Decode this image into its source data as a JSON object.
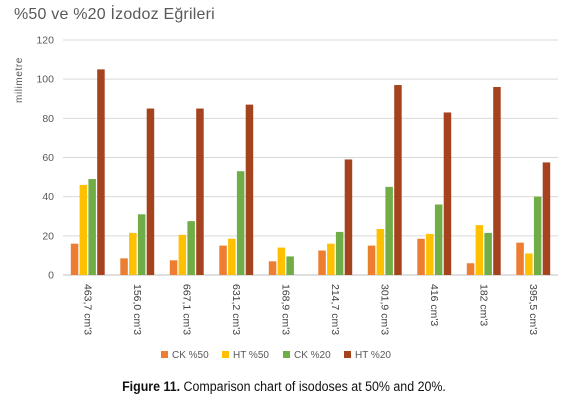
{
  "chart_data": {
    "type": "bar",
    "title": "%50 ve  %20 İzodoz  Eğrileri",
    "ylabel": "milimetre",
    "xlabel": "",
    "ylim": [
      0,
      120
    ],
    "yticks": [
      0,
      20,
      40,
      60,
      80,
      100,
      120
    ],
    "grid": true,
    "legend_position": "bottom",
    "categories": [
      "463,7 cm'3",
      "156,0  cm'3",
      "667,1 cm'3",
      "631,2 cm'3",
      "168,9 cm'3",
      "214,7 cm'3",
      "301,9 cm'3",
      "416 cm'3",
      "182 cm'3",
      "395,5 cm'3"
    ],
    "series": [
      {
        "name": "CK %50",
        "color": "#ED7D31",
        "values": [
          16,
          8.5,
          7.5,
          15,
          7,
          12.5,
          15,
          18.5,
          6,
          16.5
        ]
      },
      {
        "name": "HT %50",
        "color": "#FFC000",
        "values": [
          46,
          21.5,
          20.5,
          18.5,
          14,
          16,
          23.5,
          21,
          25.5,
          11
        ]
      },
      {
        "name": "CK %20",
        "color": "#70AD47",
        "values": [
          49,
          31,
          27.5,
          53,
          9.5,
          22,
          45,
          36,
          21.5,
          40
        ]
      },
      {
        "name": "HT %20",
        "color": "#A5431F",
        "values": [
          105,
          85,
          85,
          87,
          0,
          59,
          97,
          83,
          96,
          57.5
        ]
      }
    ]
  },
  "caption": {
    "label": "Figure 11.",
    "text": " Comparison chart of isodoses at 50% and 20%."
  }
}
